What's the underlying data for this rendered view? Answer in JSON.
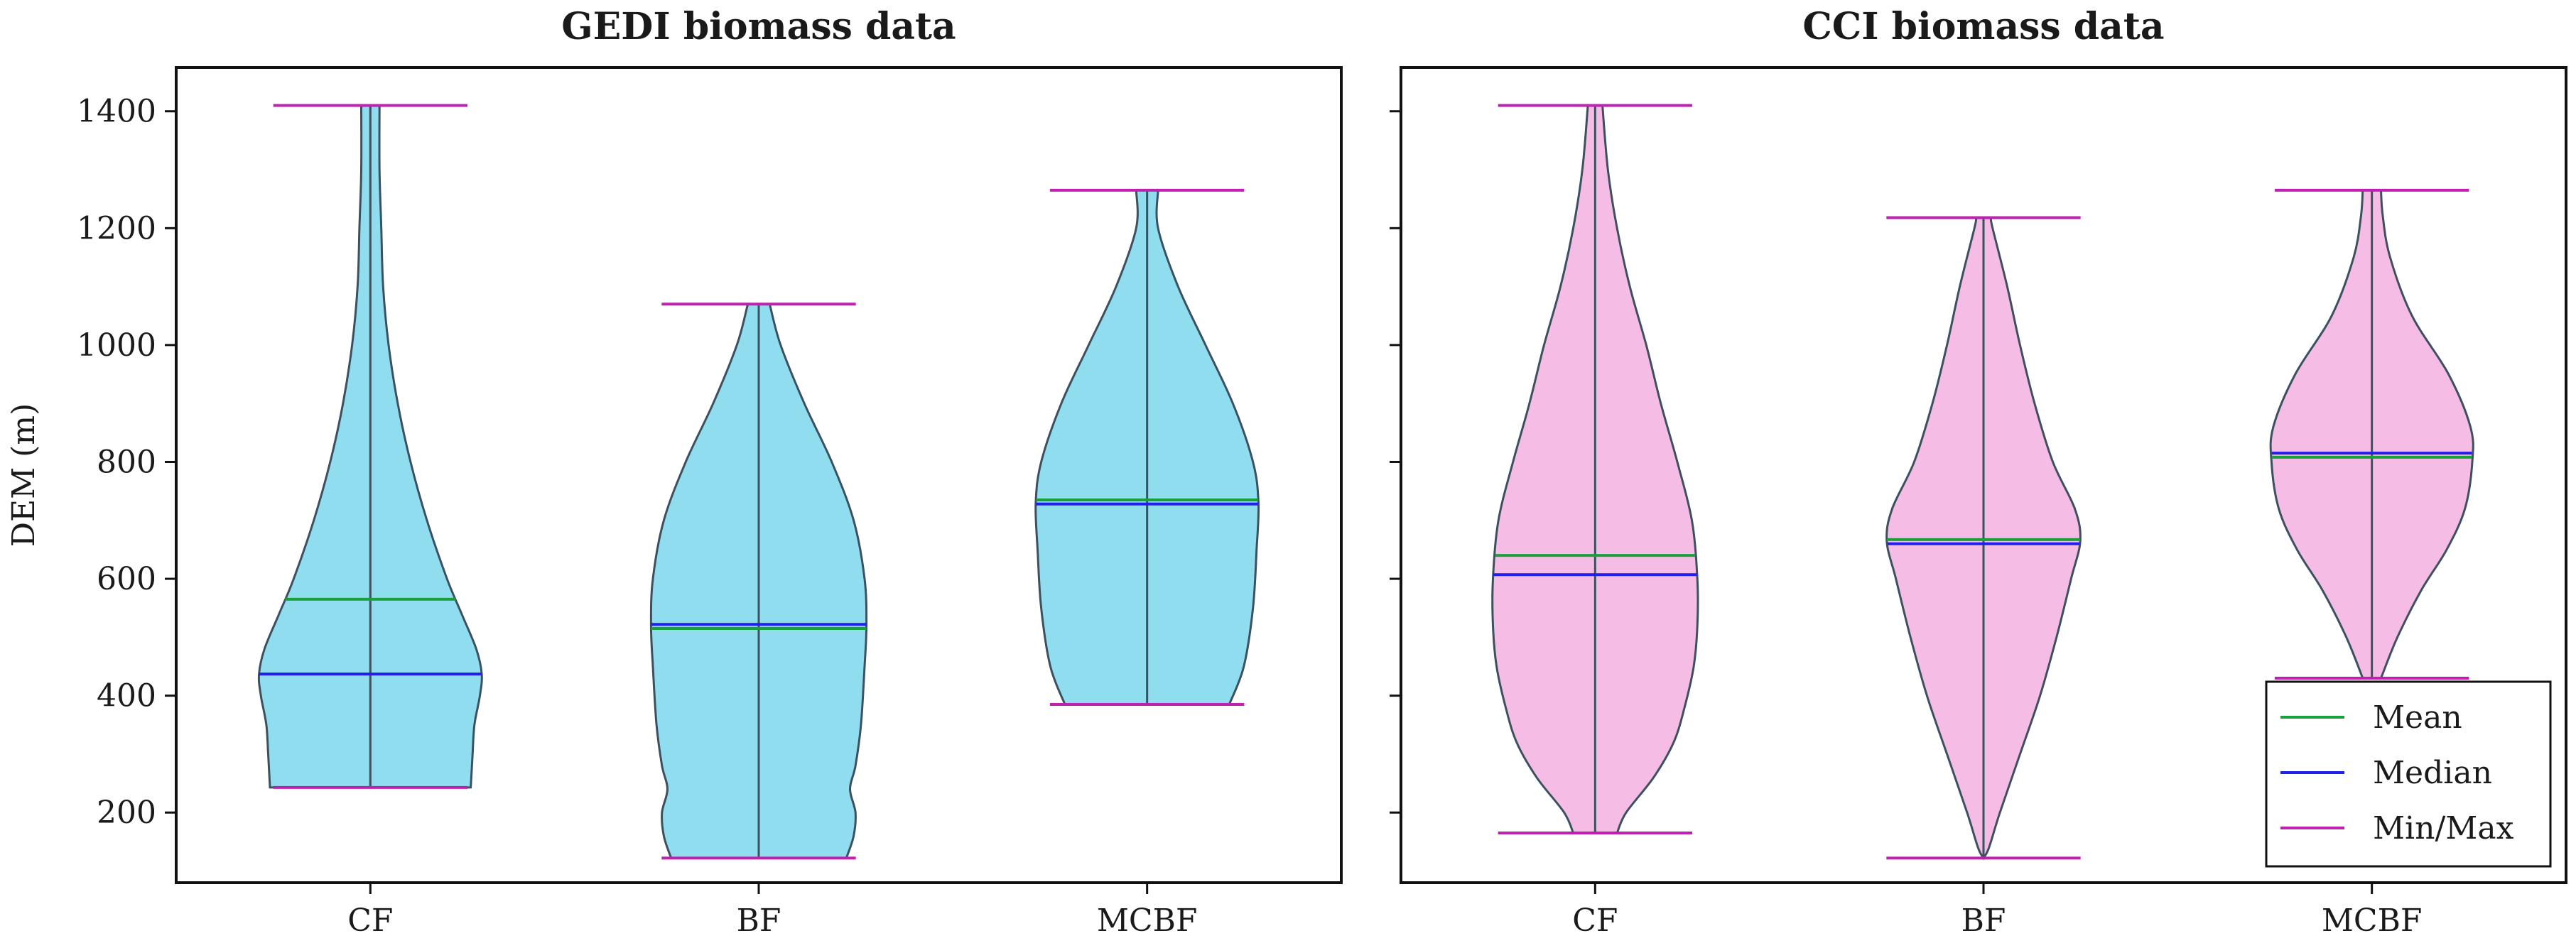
{
  "chart_data": {
    "type": "violin",
    "ylabel": "DEM (m)",
    "ylim": [
      80,
      1475
    ],
    "yticks": [
      200,
      400,
      600,
      800,
      1000,
      1200,
      1400
    ],
    "categories": [
      "CF",
      "BF",
      "MCBF"
    ],
    "legend": {
      "placement": "bottom-right of right panel",
      "entries": [
        {
          "key": "mean",
          "label": "Mean"
        },
        {
          "key": "median",
          "label": "Median"
        },
        {
          "key": "minmax",
          "label": "Min/Max"
        }
      ]
    },
    "colors": {
      "gedi_fill": "#8fddee",
      "cci_fill": "#f5bde5",
      "violin_edge": "#3d5060",
      "mean": "#1aa03a",
      "median": "#2020e8",
      "minmax": "#c020b0",
      "axis": "#111111"
    },
    "panels": [
      {
        "title": "GEDI biomass data",
        "fill_key": "gedi_fill",
        "show_ylabel": true,
        "violins": [
          {
            "category": "CF",
            "min": 243,
            "max": 1410,
            "mean": 565,
            "median": 437,
            "profile": [
              [
                243,
                0.55
              ],
              [
                300,
                0.56
              ],
              [
                350,
                0.57
              ],
              [
                400,
                0.6
              ],
              [
                437,
                0.61
              ],
              [
                480,
                0.58
              ],
              [
                540,
                0.5
              ],
              [
                600,
                0.42
              ],
              [
                700,
                0.31
              ],
              [
                800,
                0.22
              ],
              [
                900,
                0.15
              ],
              [
                1000,
                0.1
              ],
              [
                1100,
                0.07
              ],
              [
                1200,
                0.06
              ],
              [
                1300,
                0.05
              ],
              [
                1410,
                0.05
              ]
            ]
          },
          {
            "category": "BF",
            "min": 122,
            "max": 1070,
            "mean": 515,
            "median": 522,
            "profile": [
              [
                122,
                0.48
              ],
              [
                160,
                0.52
              ],
              [
                200,
                0.53
              ],
              [
                240,
                0.5
              ],
              [
                280,
                0.53
              ],
              [
                350,
                0.56
              ],
              [
                450,
                0.58
              ],
              [
                520,
                0.59
              ],
              [
                600,
                0.58
              ],
              [
                700,
                0.52
              ],
              [
                800,
                0.4
              ],
              [
                900,
                0.25
              ],
              [
                1000,
                0.12
              ],
              [
                1070,
                0.06
              ]
            ]
          },
          {
            "category": "MCBF",
            "min": 385,
            "max": 1265,
            "mean": 735,
            "median": 728,
            "profile": [
              [
                385,
                0.45
              ],
              [
                450,
                0.53
              ],
              [
                550,
                0.58
              ],
              [
                650,
                0.6
              ],
              [
                730,
                0.61
              ],
              [
                800,
                0.58
              ],
              [
                900,
                0.47
              ],
              [
                1000,
                0.32
              ],
              [
                1100,
                0.17
              ],
              [
                1200,
                0.06
              ],
              [
                1265,
                0.06
              ]
            ]
          }
        ]
      },
      {
        "title": "CCI biomass data",
        "fill_key": "cci_fill",
        "show_ylabel": false,
        "violins": [
          {
            "category": "CF",
            "min": 165,
            "max": 1410,
            "mean": 640,
            "median": 607,
            "profile": [
              [
                165,
                0.12
              ],
              [
                200,
                0.17
              ],
              [
                260,
                0.32
              ],
              [
                320,
                0.43
              ],
              [
                380,
                0.49
              ],
              [
                450,
                0.54
              ],
              [
                520,
                0.56
              ],
              [
                600,
                0.56
              ],
              [
                700,
                0.53
              ],
              [
                800,
                0.45
              ],
              [
                900,
                0.36
              ],
              [
                1000,
                0.28
              ],
              [
                1100,
                0.19
              ],
              [
                1200,
                0.12
              ],
              [
                1300,
                0.07
              ],
              [
                1410,
                0.04
              ]
            ]
          },
          {
            "category": "BF",
            "min": 122,
            "max": 1218,
            "mean": 667,
            "median": 660,
            "profile": [
              [
                122,
                0.0
              ],
              [
                140,
                0.03
              ],
              [
                200,
                0.09
              ],
              [
                300,
                0.2
              ],
              [
                400,
                0.31
              ],
              [
                500,
                0.4
              ],
              [
                600,
                0.48
              ],
              [
                665,
                0.53
              ],
              [
                720,
                0.5
              ],
              [
                800,
                0.38
              ],
              [
                900,
                0.28
              ],
              [
                1000,
                0.2
              ],
              [
                1100,
                0.13
              ],
              [
                1200,
                0.05
              ],
              [
                1218,
                0.04
              ]
            ]
          },
          {
            "category": "MCBF",
            "min": 430,
            "max": 1265,
            "mean": 808,
            "median": 815,
            "profile": [
              [
                430,
                0.05
              ],
              [
                500,
                0.14
              ],
              [
                580,
                0.27
              ],
              [
                650,
                0.41
              ],
              [
                720,
                0.51
              ],
              [
                800,
                0.55
              ],
              [
                860,
                0.54
              ],
              [
                950,
                0.42
              ],
              [
                1050,
                0.22
              ],
              [
                1150,
                0.1
              ],
              [
                1220,
                0.06
              ],
              [
                1265,
                0.05
              ]
            ]
          }
        ]
      }
    ]
  }
}
